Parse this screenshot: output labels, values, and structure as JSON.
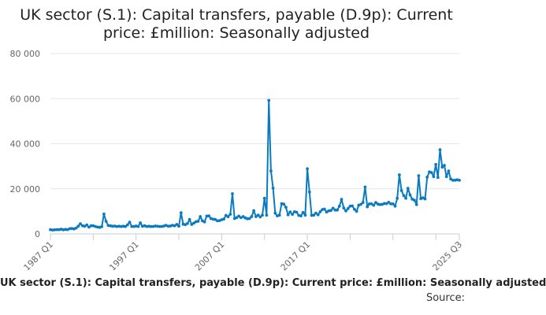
{
  "chart_data": {
    "type": "line",
    "title_lines": [
      "UK sector (S.1): Capital transfers, payable (D.9p): Current",
      "price: £million: Seasonally adjusted"
    ],
    "footer_series_label": "UK sector (S.1): Capital transfers, payable (D.9p): Current price: £million: Seasonally adjusted",
    "source_label": "Source:",
    "x_tick_labels": [
      "1987 Q1",
      "1997 Q1",
      "2007 Q1",
      "2017 Q1",
      "2025 Q3"
    ],
    "y_tick_labels": [
      "0",
      "20 000",
      "40 000",
      "60 000",
      "80 000"
    ],
    "ylim": [
      0,
      80000
    ],
    "y_ticks": [
      0,
      20000,
      40000,
      60000,
      80000
    ],
    "x_start": "1987 Q1",
    "x_end": "2025 Q3",
    "grid": true,
    "line_color": "#0b7bc1",
    "series": [
      {
        "values": [
          1900,
          1700,
          1800,
          1900,
          1900,
          2100,
          1800,
          2000,
          1900,
          2300,
          2400,
          2200,
          2600,
          3400,
          4500,
          3600,
          3400,
          4000,
          3000,
          3600,
          3600,
          3300,
          3000,
          2900,
          3200,
          8800,
          5600,
          3700,
          3600,
          3400,
          3500,
          3300,
          3400,
          3300,
          3400,
          3300,
          4000,
          5200,
          3300,
          3300,
          3500,
          3300,
          4900,
          3400,
          3600,
          3300,
          3400,
          3300,
          3300,
          3500,
          3400,
          3300,
          3300,
          3500,
          3800,
          3400,
          3500,
          3800,
          3600,
          4200,
          3400,
          9400,
          4300,
          4100,
          4600,
          6400,
          4200,
          4800,
          5400,
          5600,
          7700,
          5800,
          5300,
          7900,
          8000,
          6800,
          6500,
          6400,
          5800,
          5900,
          6300,
          6600,
          8200,
          7600,
          8700,
          17800,
          6800,
          7200,
          7900,
          7200,
          7700,
          7100,
          6700,
          6800,
          7700,
          10300,
          7700,
          8300,
          7500,
          8300,
          15800,
          8300,
          59200,
          27900,
          20300,
          9200,
          8000,
          8300,
          13400,
          13200,
          11800,
          8500,
          9700,
          8700,
          9800,
          9600,
          8200,
          8000,
          9500,
          8300,
          28900,
          18600,
          8200,
          8300,
          9200,
          8500,
          9800,
          10800,
          11000,
          9700,
          10200,
          10400,
          11400,
          10600,
          10600,
          12300,
          15300,
          11500,
          10200,
          11200,
          12300,
          12400,
          10900,
          10000,
          12700,
          13100,
          13900,
          20800,
          12000,
          13300,
          13300,
          12700,
          13900,
          13200,
          13000,
          13100,
          13500,
          13400,
          14000,
          13300,
          13300,
          12300,
          15800,
          26200,
          19200,
          17000,
          15800,
          20200,
          17300,
          15400,
          15000,
          13000,
          25800,
          15600,
          16000,
          15500,
          25200,
          27500,
          27200,
          25400,
          30800,
          25000,
          37300,
          29600,
          30400,
          25400,
          27900,
          24300,
          23800,
          23800,
          24000,
          23800
        ]
      }
    ]
  }
}
